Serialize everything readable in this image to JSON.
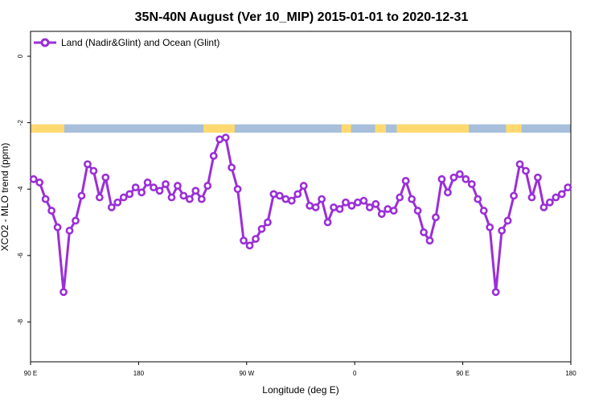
{
  "chart_data": {
    "type": "line",
    "title": "35N-40N August (Ver 10_MIP)   2015-01-01 to 2020-12-31",
    "xlabel": "Longitude (deg E)",
    "ylabel": "XCO2 - MLO trend (ppm)",
    "xlim": [
      90,
      540
    ],
    "ylim": [
      -9.2,
      0.75
    ],
    "x_ticks": [
      {
        "value": 90,
        "label": "90 E"
      },
      {
        "value": 180,
        "label": "180"
      },
      {
        "value": 270,
        "label": "90 W"
      },
      {
        "value": 360,
        "label": "0"
      },
      {
        "value": 450,
        "label": "90 E"
      },
      {
        "value": 540,
        "label": "180"
      }
    ],
    "y_ticks": [
      {
        "value": 0,
        "label": "0"
      },
      {
        "value": -2,
        "label": "-2"
      },
      {
        "value": -4,
        "label": "-4"
      },
      {
        "value": -6,
        "label": "-6"
      },
      {
        "value": -8,
        "label": "-8"
      }
    ],
    "legend": {
      "position": "top-left"
    },
    "land_ocean_strip": {
      "y_range": [
        -2.3,
        -2.05
      ],
      "land_color": "#FFD970",
      "ocean_color": "#A7BFDB",
      "land_segments": [
        [
          90,
          118
        ],
        [
          234,
          260
        ],
        [
          349,
          357
        ],
        [
          377,
          386
        ],
        [
          395,
          455
        ],
        [
          486,
          499
        ]
      ]
    },
    "series": [
      {
        "name": "Land (Nadir&Glint) and Ocean (Glint)",
        "color": "#9B2FD8",
        "x": [
          92.5,
          97.5,
          102.5,
          107.5,
          112.5,
          117.5,
          122.5,
          127.5,
          132.5,
          137.5,
          142.5,
          147.5,
          152.5,
          157.5,
          162.5,
          167.5,
          172.5,
          177.5,
          182.5,
          187.5,
          192.5,
          197.5,
          202.5,
          207.5,
          212.5,
          217.5,
          222.5,
          227.5,
          232.5,
          237.5,
          242.5,
          247.5,
          252.5,
          257.5,
          262.5,
          267.5,
          272.5,
          277.5,
          282.5,
          287.5,
          292.5,
          297.5,
          302.5,
          307.5,
          312.5,
          317.5,
          322.5,
          327.5,
          332.5,
          337.5,
          342.5,
          347.5,
          352.5,
          357.5,
          362.5,
          367.5,
          372.5,
          377.5,
          382.5,
          387.5,
          392.5,
          397.5,
          402.5,
          407.5,
          412.5,
          417.5,
          422.5,
          427.5,
          432.5,
          437.5,
          442.5,
          447.5,
          452.5,
          457.5,
          462.5,
          467.5,
          472.5,
          477.5,
          482.5,
          487.5,
          492.5,
          497.5,
          502.5,
          507.5,
          512.5,
          517.5,
          522.5,
          527.5,
          532.5,
          537.5
        ],
        "values": [
          -3.7,
          -3.8,
          -4.3,
          -4.65,
          -5.15,
          -7.1,
          -5.25,
          -4.95,
          -4.2,
          -3.25,
          -3.45,
          -4.25,
          -3.65,
          -4.55,
          -4.4,
          -4.25,
          -4.15,
          -3.95,
          -4.1,
          -3.8,
          -3.95,
          -4.05,
          -3.85,
          -4.25,
          -3.9,
          -4.2,
          -4.3,
          -4.05,
          -4.3,
          -3.9,
          -3.0,
          -2.5,
          -2.45,
          -3.35,
          -4.0,
          -5.55,
          -5.7,
          -5.5,
          -5.2,
          -5.0,
          -4.15,
          -4.2,
          -4.3,
          -4.35,
          -4.15,
          -3.9,
          -4.5,
          -4.55,
          -4.3,
          -5.0,
          -4.55,
          -4.6,
          -4.4,
          -4.5,
          -4.4,
          -4.35,
          -4.55,
          -4.45,
          -4.75,
          -4.6,
          -4.65,
          -4.25,
          -3.75,
          -4.3,
          -4.65,
          -5.3,
          -5.55,
          -4.85,
          -3.7,
          -4.1,
          -3.65,
          -3.55,
          -3.7,
          -3.85,
          -4.3,
          -4.65,
          -5.15,
          -7.1,
          -5.25,
          -4.95,
          -4.2,
          -3.25,
          -3.45,
          -4.25,
          -3.65,
          -4.55,
          -4.4,
          -4.25,
          -4.15,
          -3.95
        ]
      }
    ]
  }
}
